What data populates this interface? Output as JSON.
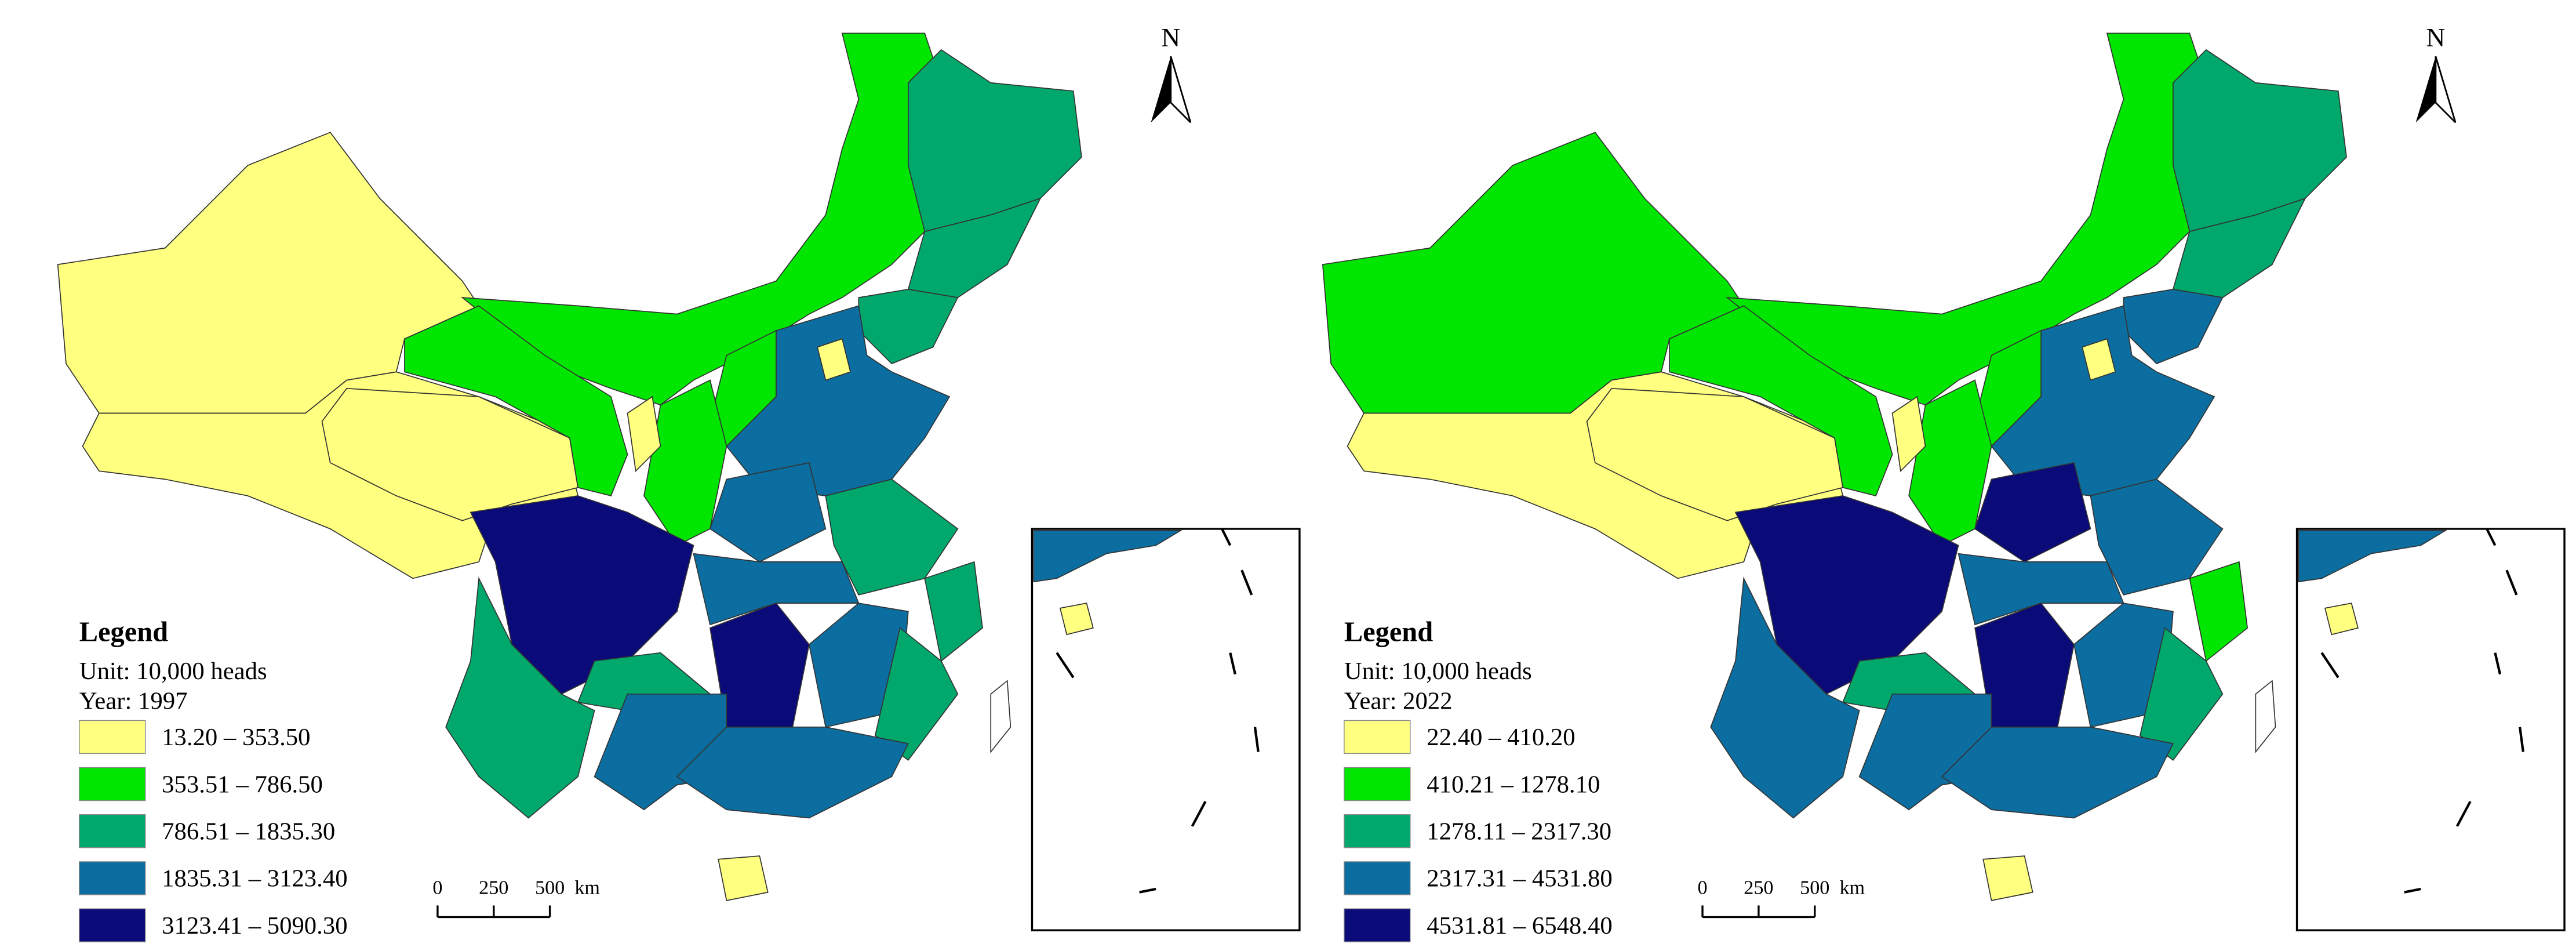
{
  "maps": [
    {
      "north": "N",
      "legend_title": "Legend",
      "unit": "Unit: 10,000 heads",
      "year": "Year: 1997",
      "classes": [
        {
          "label": "13.20 – 353.50",
          "color": "#ffff80"
        },
        {
          "label": "353.51 – 786.50",
          "color": "#00e600"
        },
        {
          "label": "786.51 – 1835.30",
          "color": "#00a86b"
        },
        {
          "label": "1835.31 – 3123.40",
          "color": "#0c6ea0"
        },
        {
          "label": "3123.41 – 5090.30",
          "color": "#0a0a78"
        }
      ],
      "scale": {
        "ticks": [
          "0",
          "250",
          "500"
        ],
        "unit": "km"
      }
    },
    {
      "north": "N",
      "legend_title": "Legend",
      "unit": "Unit: 10,000 heads",
      "year": "Year: 2022",
      "classes": [
        {
          "label": "22.40 – 410.20",
          "color": "#ffff80"
        },
        {
          "label": "410.21 – 1278.10",
          "color": "#00e600"
        },
        {
          "label": "1278.11 – 2317.30",
          "color": "#00a86b"
        },
        {
          "label": "2317.31 – 4531.80",
          "color": "#0c6ea0"
        },
        {
          "label": "4531.81 – 6548.40",
          "color": "#0a0a78"
        }
      ],
      "scale": {
        "ticks": [
          "0",
          "250",
          "500"
        ],
        "unit": "km"
      }
    }
  ]
}
